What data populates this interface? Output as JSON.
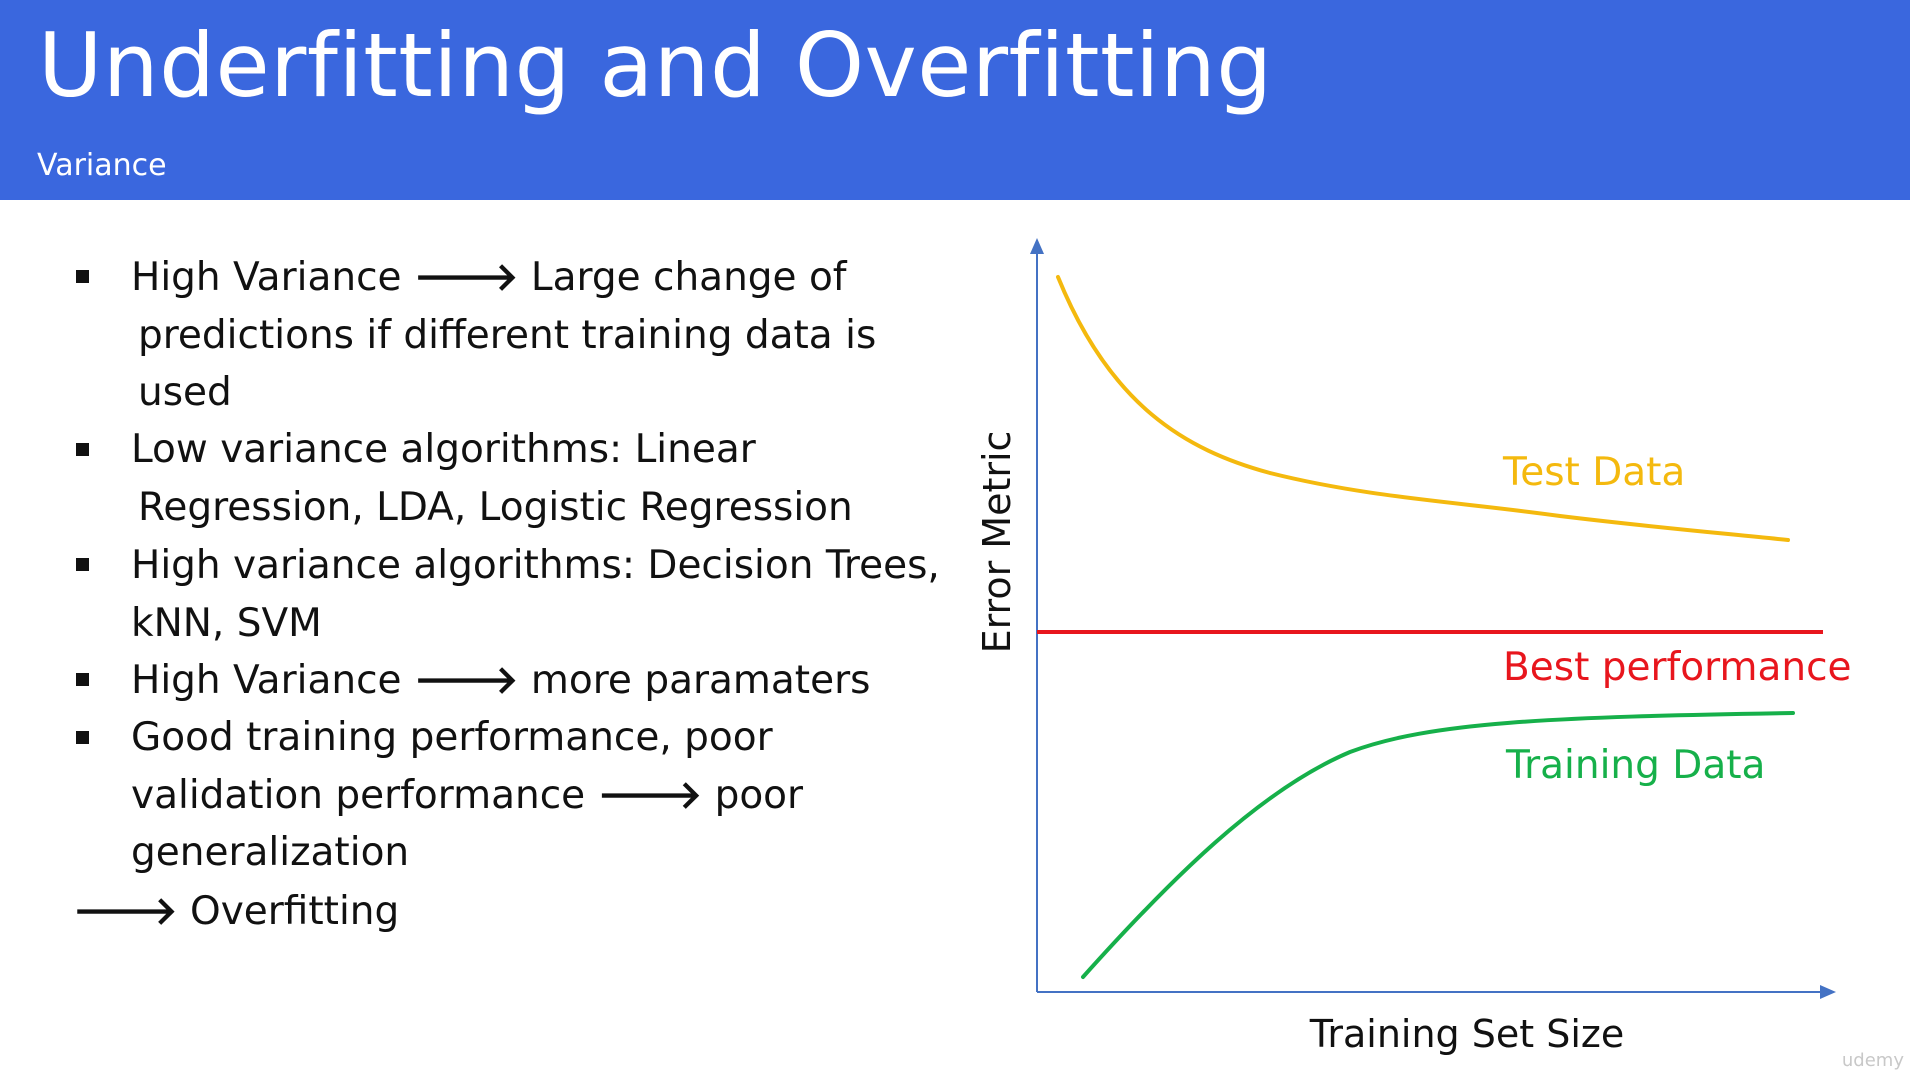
{
  "header": {
    "title": "Underfitting and Overfitting",
    "subtitle": "Variance"
  },
  "bullets": [
    {
      "lines": [
        {
          "before": "High Variance ",
          "arrow": "🡒",
          "after": " Large change of"
        },
        {
          "text": "predictions if different training data is"
        },
        {
          "text": "used"
        }
      ]
    },
    {
      "lines": [
        {
          "text": "Low variance algorithms: Linear"
        },
        {
          "text": "Regression, LDA, Logistic Regression"
        }
      ]
    },
    {
      "lines": [
        {
          "text": "High variance algorithms: Decision Trees,"
        },
        {
          "text": "kNN, SVM"
        }
      ]
    },
    {
      "lines": [
        {
          "before": "High Variance ",
          "arrow": "🡒",
          "after": " more paramaters"
        }
      ]
    },
    {
      "lines": [
        {
          "text": "Good training performance, poor"
        },
        {
          "before": "validation performance ",
          "arrow": "🡒",
          "after": " poor"
        },
        {
          "text": "generalization"
        }
      ]
    }
  ],
  "conclusion": {
    "arrow": "🡒",
    "text": " Overfitting"
  },
  "diagram": {
    "x_axis_label": "Training Set Size",
    "y_axis_label": "Error Metric",
    "axis_color": "#4472C4",
    "curves": {
      "test": {
        "label": "Test Data",
        "color": "#F4B90E"
      },
      "best": {
        "label": "Best performance",
        "color": "#E8161D"
      },
      "training": {
        "label": "Training Data",
        "color": "#16B04A"
      }
    }
  },
  "watermark": "udemy"
}
